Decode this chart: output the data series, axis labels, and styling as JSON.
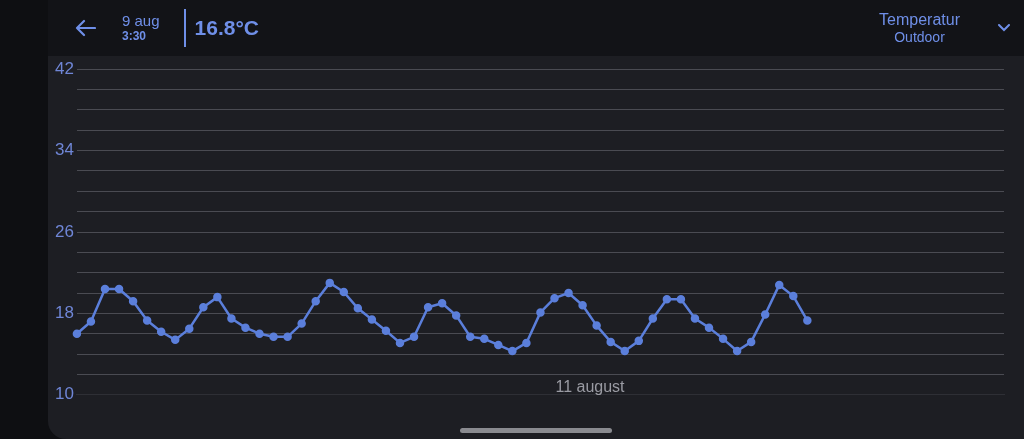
{
  "chart_data": {
    "type": "line",
    "title": "Temperatur",
    "subtitle": "Outdoor",
    "annotations": [
      "9 aug",
      "3:30",
      "16.8°C",
      "11 august"
    ],
    "categories": [
      null,
      null,
      null,
      null,
      null,
      null,
      null,
      null,
      null,
      null,
      null,
      null,
      null,
      null,
      null,
      null,
      null,
      null,
      null,
      null,
      null,
      null,
      null,
      null,
      null,
      null,
      null,
      null,
      null,
      null,
      null,
      null,
      null,
      null,
      null,
      null,
      null,
      null,
      null,
      null,
      null,
      null,
      null,
      null,
      null,
      null,
      null,
      null,
      null,
      null,
      null,
      null,
      null,
      null,
      null,
      null,
      null,
      null,
      null,
      null,
      null,
      null,
      null,
      null,
      null,
      null,
      null
    ],
    "values": [
      16.0,
      17.2,
      20.4,
      20.4,
      19.2,
      17.3,
      16.2,
      15.4,
      16.5,
      18.6,
      19.6,
      17.5,
      16.6,
      16.0,
      15.7,
      15.7,
      17.0,
      19.2,
      21.0,
      20.1,
      18.5,
      17.4,
      16.3,
      15.1,
      15.7,
      18.6,
      19.0,
      17.8,
      15.7,
      15.5,
      14.9,
      14.3,
      15.1,
      18.1,
      19.5,
      20.0,
      18.8,
      16.8,
      15.2,
      14.3,
      15.3,
      17.5,
      19.4,
      19.4,
      17.5,
      16.6,
      15.5,
      14.3,
      15.2,
      17.9,
      20.8,
      19.7,
      17.3,
      null,
      null,
      null,
      null,
      null,
      null,
      null,
      null,
      null,
      null,
      null,
      null,
      null,
      null
    ],
    "color": "#5b7fdb",
    "marker": "circle",
    "line_style": "solid",
    "grid": "y",
    "ylim": [
      10,
      42
    ],
    "yticks": [
      10,
      {
        "value": 12,
        "label": null
      },
      {
        "value": 14,
        "label": null
      },
      {
        "value": 16,
        "label": null
      },
      18,
      {
        "value": 20,
        "label": null
      },
      {
        "value": 22,
        "label": null
      },
      {
        "value": 24,
        "label": null
      },
      26,
      {
        "value": 28,
        "label": null
      },
      {
        "value": 30,
        "label": null
      },
      {
        "value": 32,
        "label": null
      },
      34,
      {
        "value": 36,
        "label": null
      },
      {
        "value": 38,
        "label": null
      },
      {
        "value": 40,
        "label": null
      },
      42
    ]
  }
}
